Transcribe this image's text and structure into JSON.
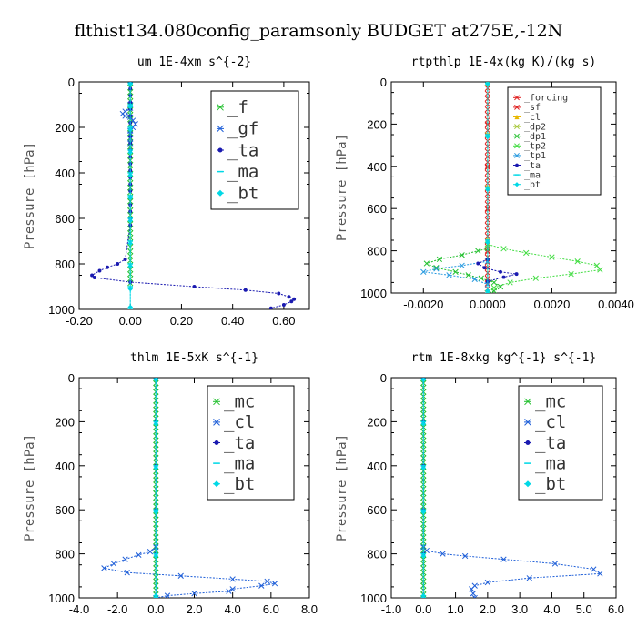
{
  "figure_title": "flthist134.080config_paramsonly  BUDGET at275E,-12N",
  "colors": {
    "green": "#22c02e",
    "blue": "#1f5fd8",
    "darkblue": "#1a1ab0",
    "cyan": "#00d8e6",
    "sky": "#2a9be0",
    "red": "#e02020",
    "orange": "#e8b800",
    "olive": "#a7c83a",
    "lime": "#44dd44",
    "teal": "#00bfbf"
  },
  "chart_data": [
    {
      "type": "line",
      "title": "um   1E-4xm  s^{-2}",
      "ylabel": "Pressure [hPa]",
      "xlim": [
        -0.2,
        0.7
      ],
      "ylim": [
        1000,
        0
      ],
      "xticks": [
        -0.2,
        0.0,
        0.2,
        0.4,
        0.6
      ],
      "xtick_labels": [
        "-0.20",
        "0.00",
        "0.20",
        "0.40",
        "0.60"
      ],
      "yticks": [
        0,
        200,
        400,
        600,
        800,
        1000
      ],
      "grid": false,
      "legend_position": "top-right",
      "series": [
        {
          "name": "_f",
          "color": "green",
          "marker": "x",
          "x": [
            0,
            0,
            0,
            0,
            0,
            0,
            0,
            0,
            0,
            0,
            0,
            0,
            0,
            0,
            0,
            0,
            0,
            0,
            0,
            0,
            0,
            0,
            0,
            0,
            0,
            0,
            0,
            0,
            0,
            0,
            0,
            0,
            0,
            0,
            0,
            0,
            0,
            0,
            0,
            0,
            0,
            0,
            0,
            0,
            0
          ],
          "y": [
            5,
            25,
            45,
            65,
            85,
            105,
            125,
            145,
            165,
            185,
            205,
            225,
            245,
            265,
            285,
            305,
            325,
            345,
            365,
            385,
            405,
            425,
            445,
            465,
            485,
            505,
            525,
            545,
            565,
            585,
            605,
            625,
            645,
            665,
            685,
            705,
            725,
            745,
            765,
            785,
            805,
            825,
            845,
            865,
            885
          ]
        },
        {
          "name": "_gf",
          "color": "blue",
          "marker": "x",
          "x": [
            0,
            0,
            -0.02,
            -0.03,
            -0.02,
            0,
            0.01,
            0.02,
            0.01,
            0,
            0,
            0,
            0
          ],
          "y": [
            100,
            115,
            130,
            140,
            150,
            155,
            170,
            185,
            200,
            215,
            230,
            250,
            270
          ]
        },
        {
          "name": "_ta",
          "color": "darkblue",
          "marker": "dot",
          "x": [
            0,
            0,
            0,
            0,
            0,
            0,
            0,
            0,
            0,
            0,
            0,
            0,
            0,
            0,
            0,
            0,
            0,
            0,
            0,
            0,
            0,
            0,
            -0.02,
            -0.05,
            -0.09,
            -0.12,
            -0.15,
            -0.14,
            0,
            0.25,
            0.45,
            0.58,
            0.62,
            0.64,
            0.63,
            0.6,
            0.55
          ],
          "y": [
            5,
            30,
            60,
            90,
            120,
            150,
            180,
            210,
            240,
            270,
            300,
            330,
            360,
            390,
            420,
            450,
            480,
            510,
            540,
            570,
            600,
            630,
            780,
            800,
            815,
            830,
            850,
            860,
            880,
            900,
            915,
            930,
            945,
            955,
            965,
            980,
            995
          ]
        },
        {
          "name": "_ma",
          "color": "cyan",
          "marker": "dash",
          "x": [
            0,
            0,
            0,
            0,
            0,
            0,
            0,
            0,
            0,
            0,
            0
          ],
          "y": [
            5,
            100,
            200,
            300,
            400,
            500,
            600,
            700,
            800,
            900,
            1000
          ]
        },
        {
          "name": "_bt",
          "color": "cyan",
          "marker": "diamond",
          "x": [
            0,
            0,
            0,
            0,
            0,
            0,
            0,
            0,
            0,
            0,
            0
          ],
          "y": [
            10,
            110,
            210,
            310,
            410,
            510,
            610,
            710,
            810,
            910,
            990
          ]
        }
      ]
    },
    {
      "type": "line",
      "title": "rtpthlp   1E-4x(kg K)/(kg s)",
      "ylabel": "Pressure [hPa]",
      "xlim": [
        -0.003,
        0.004
      ],
      "ylim": [
        1000,
        0
      ],
      "xticks": [
        -0.002,
        0.0,
        0.002,
        0.004
      ],
      "xtick_labels": [
        "-0.0020",
        "0.0000",
        "0.0020",
        "0.0040"
      ],
      "yticks": [
        0,
        200,
        400,
        600,
        800,
        1000
      ],
      "grid": false,
      "legend_position": "top-right",
      "series": [
        {
          "name": "_forcing",
          "color": "red",
          "marker": "x",
          "x": [
            0,
            0,
            0,
            0,
            0,
            0,
            0,
            0,
            0,
            0,
            0,
            0,
            0,
            0,
            0,
            0,
            0,
            0,
            0,
            0,
            0,
            0,
            0,
            0,
            0,
            0,
            0,
            0,
            0,
            0,
            0,
            0,
            0,
            0,
            0,
            0,
            0,
            0,
            0,
            0,
            0
          ],
          "y": [
            5,
            30,
            55,
            80,
            105,
            130,
            155,
            180,
            205,
            230,
            255,
            280,
            305,
            330,
            355,
            380,
            405,
            430,
            455,
            480,
            505,
            530,
            555,
            580,
            605,
            630,
            655,
            680,
            705,
            730,
            755,
            780,
            805,
            830,
            855,
            880,
            905,
            930,
            955,
            980,
            1000
          ]
        },
        {
          "name": "_sf",
          "color": "red",
          "marker": "x",
          "x": [
            0,
            0,
            0,
            0,
            0,
            0
          ],
          "y": [
            5,
            200,
            400,
            600,
            800,
            1000
          ]
        },
        {
          "name": "_cl",
          "color": "orange",
          "marker": "tri",
          "x": [
            0,
            0,
            0,
            0,
            0
          ],
          "y": [
            5,
            250,
            500,
            750,
            1000
          ]
        },
        {
          "name": "_dp2",
          "color": "olive",
          "marker": "x",
          "x": [
            0,
            0,
            0,
            0,
            0
          ],
          "y": [
            5,
            250,
            500,
            750,
            1000
          ]
        },
        {
          "name": "_dp1",
          "color": "green",
          "marker": "x",
          "x": [
            0,
            0,
            -0.0003,
            -0.0008,
            -0.0015,
            -0.0019,
            -0.0016,
            -0.001,
            -0.0006,
            -0.0002,
            0.0002,
            0.0004,
            0.0002,
            0
          ],
          "y": [
            770,
            790,
            800,
            820,
            840,
            860,
            880,
            900,
            915,
            930,
            950,
            970,
            990,
            1000
          ]
        },
        {
          "name": "_tp2",
          "color": "lime",
          "marker": "x",
          "x": [
            0,
            0.0005,
            0.0012,
            0.002,
            0.0028,
            0.0034,
            0.0035,
            0.0026,
            0.0015,
            0.0007,
            0.0002,
            0
          ],
          "y": [
            770,
            790,
            810,
            830,
            850,
            870,
            890,
            910,
            930,
            950,
            975,
            1000
          ]
        },
        {
          "name": "_tp1",
          "color": "sky",
          "marker": "x",
          "x": [
            0,
            -0.0008,
            -0.0016,
            -0.002,
            -0.0012,
            -0.0004,
            0
          ],
          "y": [
            850,
            870,
            885,
            900,
            915,
            935,
            960
          ]
        },
        {
          "name": "_ta",
          "color": "darkblue",
          "marker": "dot",
          "x": [
            0,
            -0.0003,
            -0.0001,
            0.0004,
            0.0009,
            0.0005,
            0
          ],
          "y": [
            840,
            860,
            880,
            900,
            910,
            925,
            945
          ]
        },
        {
          "name": "_ma",
          "color": "cyan",
          "marker": "dash",
          "x": [
            0,
            0,
            0,
            0,
            0
          ],
          "y": [
            5,
            250,
            500,
            750,
            1000
          ]
        },
        {
          "name": "_bt",
          "color": "cyan",
          "marker": "diamond",
          "x": [
            0,
            0,
            0,
            0,
            0
          ],
          "y": [
            10,
            260,
            510,
            760,
            990
          ]
        }
      ]
    },
    {
      "type": "line",
      "title": "thlm   1E-5xK  s^{-1}",
      "ylabel": "Pressure [hPa]",
      "xlim": [
        -4.0,
        8.0
      ],
      "ylim": [
        1000,
        0
      ],
      "xticks": [
        -4,
        -2,
        0,
        2,
        4,
        6,
        8
      ],
      "xtick_labels": [
        "-4.0",
        "-2.0",
        "0.0",
        "2.0",
        "4.0",
        "6.0",
        "8.0"
      ],
      "yticks": [
        0,
        200,
        400,
        600,
        800,
        1000
      ],
      "grid": false,
      "legend_position": "top-right",
      "series": [
        {
          "name": "_mc",
          "color": "green",
          "marker": "x",
          "x": [
            0,
            0,
            0,
            0,
            0,
            0,
            0,
            0,
            0,
            0,
            0,
            0,
            0,
            0,
            0,
            0,
            0,
            0,
            0,
            0,
            0,
            0,
            0,
            0,
            0,
            0,
            0,
            0,
            0,
            0,
            0,
            0,
            0,
            0,
            0,
            0,
            0,
            0,
            0,
            0,
            0,
            0,
            0,
            0,
            0,
            0,
            0,
            0,
            0,
            0,
            0
          ],
          "y": [
            5,
            25,
            45,
            65,
            85,
            105,
            125,
            145,
            165,
            185,
            205,
            225,
            245,
            265,
            285,
            305,
            325,
            345,
            365,
            385,
            405,
            425,
            445,
            465,
            485,
            505,
            525,
            545,
            565,
            585,
            605,
            625,
            645,
            665,
            685,
            705,
            725,
            745,
            765,
            785,
            805,
            825,
            845,
            865,
            885,
            905,
            925,
            945,
            965,
            985,
            1000
          ]
        },
        {
          "name": "_cl",
          "color": "blue",
          "marker": "x",
          "x": [
            0,
            -0.3,
            -0.9,
            -1.6,
            -2.2,
            -2.7,
            -1.5,
            1.3,
            4,
            5.8,
            6.2,
            5.5,
            4,
            3.8,
            2,
            0.6,
            0
          ],
          "y": [
            770,
            790,
            805,
            825,
            845,
            865,
            885,
            900,
            915,
            925,
            935,
            945,
            960,
            970,
            980,
            990,
            1000
          ]
        },
        {
          "name": "_ta",
          "color": "darkblue",
          "marker": "dot",
          "x": [
            0,
            0,
            0,
            0,
            0,
            0
          ],
          "y": [
            5,
            200,
            400,
            600,
            800,
            1000
          ]
        },
        {
          "name": "_ma",
          "color": "cyan",
          "marker": "dash",
          "x": [
            0,
            0,
            0,
            0,
            0,
            0
          ],
          "y": [
            5,
            200,
            400,
            600,
            800,
            1000
          ]
        },
        {
          "name": "_bt",
          "color": "cyan",
          "marker": "diamond",
          "x": [
            0,
            0,
            0,
            0,
            0,
            0
          ],
          "y": [
            10,
            210,
            410,
            610,
            810,
            990
          ]
        }
      ]
    },
    {
      "type": "line",
      "title": "rtm   1E-8xkg  kg^{-1}  s^{-1}",
      "ylabel": "Pressure [hPa]",
      "xlim": [
        -1.0,
        6.0
      ],
      "ylim": [
        1000,
        0
      ],
      "xticks": [
        -1,
        0,
        1,
        2,
        3,
        4,
        5,
        6
      ],
      "xtick_labels": [
        "-1.0",
        "0.0",
        "1.0",
        "2.0",
        "3.0",
        "4.0",
        "5.0",
        "6.0"
      ],
      "yticks": [
        0,
        200,
        400,
        600,
        800,
        1000
      ],
      "grid": false,
      "legend_position": "top-right",
      "series": [
        {
          "name": "_mc",
          "color": "green",
          "marker": "x",
          "x": [
            0,
            0,
            0,
            0,
            0,
            0,
            0,
            0,
            0,
            0,
            0,
            0,
            0,
            0,
            0,
            0,
            0,
            0,
            0,
            0,
            0,
            0,
            0,
            0,
            0,
            0,
            0,
            0,
            0,
            0,
            0,
            0,
            0,
            0,
            0,
            0,
            0,
            0,
            0,
            0,
            0,
            0,
            0,
            0,
            0,
            0,
            0,
            0,
            0,
            0,
            0
          ],
          "y": [
            5,
            25,
            45,
            65,
            85,
            105,
            125,
            145,
            165,
            185,
            205,
            225,
            245,
            265,
            285,
            305,
            325,
            345,
            365,
            385,
            405,
            425,
            445,
            465,
            485,
            505,
            525,
            545,
            565,
            585,
            605,
            625,
            645,
            665,
            685,
            705,
            725,
            745,
            765,
            785,
            805,
            825,
            845,
            865,
            885,
            905,
            925,
            945,
            965,
            985,
            1000
          ]
        },
        {
          "name": "_cl",
          "color": "blue",
          "marker": "x",
          "x": [
            0,
            0.1,
            0.6,
            1.3,
            2.5,
            4.1,
            5.3,
            5.5,
            3.3,
            2,
            1.6,
            1.5,
            1.55,
            1.6
          ],
          "y": [
            770,
            785,
            800,
            810,
            825,
            845,
            870,
            890,
            910,
            930,
            945,
            960,
            980,
            1000
          ]
        },
        {
          "name": "_ta",
          "color": "darkblue",
          "marker": "dot",
          "x": [
            0,
            0,
            0,
            0,
            0,
            0
          ],
          "y": [
            5,
            200,
            400,
            600,
            800,
            1000
          ]
        },
        {
          "name": "_ma",
          "color": "cyan",
          "marker": "dash",
          "x": [
            0,
            0,
            0,
            0,
            0,
            0
          ],
          "y": [
            5,
            200,
            400,
            600,
            800,
            1000
          ]
        },
        {
          "name": "_bt",
          "color": "cyan",
          "marker": "diamond",
          "x": [
            0,
            0,
            0,
            0,
            0,
            0
          ],
          "y": [
            10,
            210,
            410,
            610,
            810,
            990
          ]
        }
      ]
    }
  ]
}
